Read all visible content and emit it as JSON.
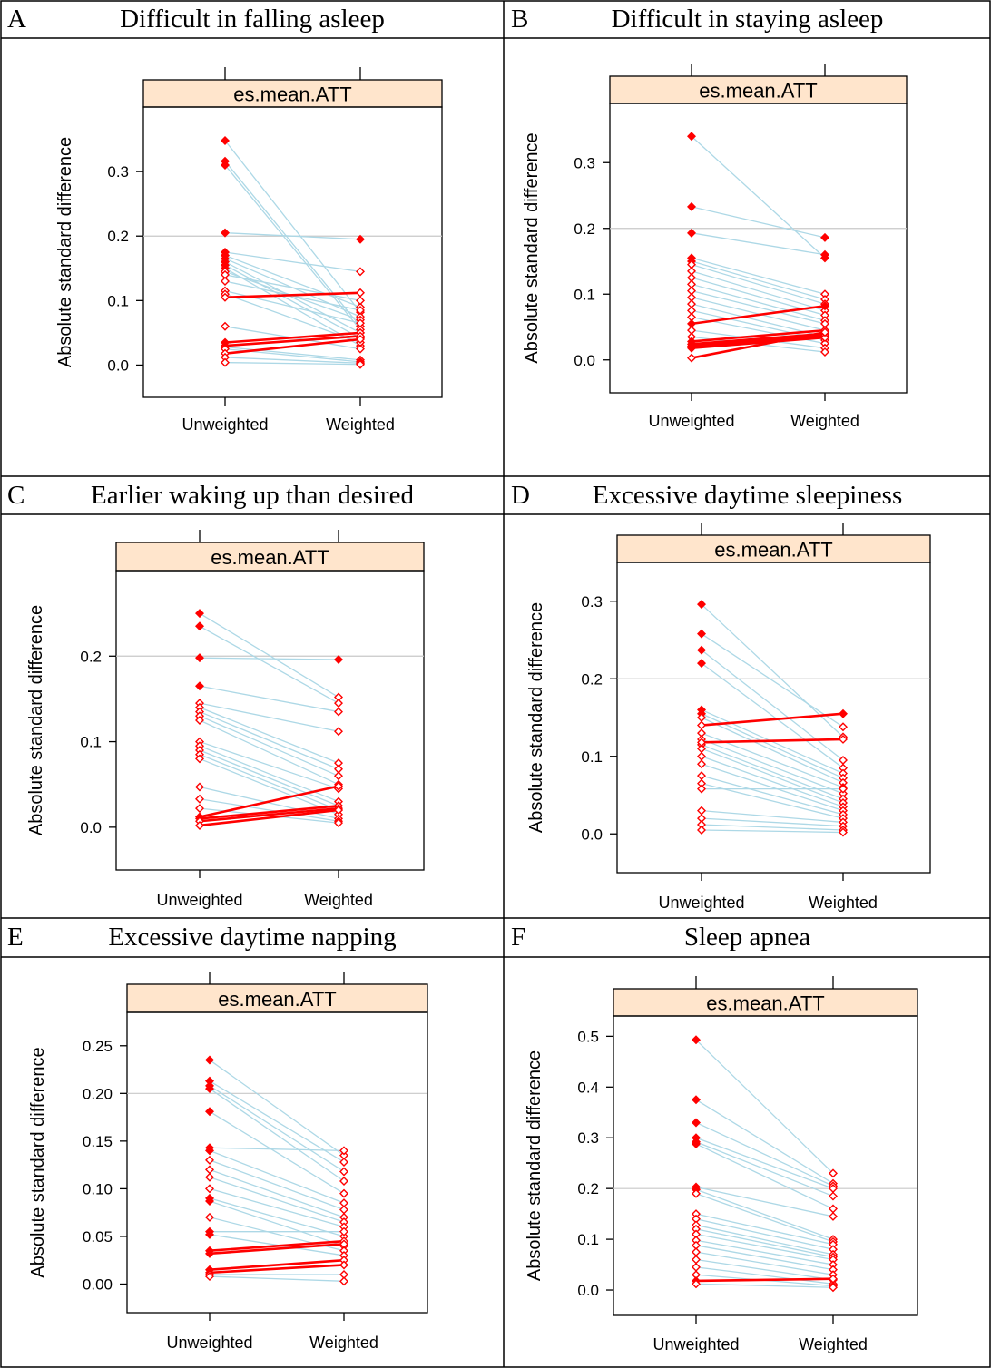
{
  "panels": [
    {
      "letter": "A",
      "title": "Difficult in falling asleep",
      "chart_data": {
        "type": "line",
        "strip_label": "es.mean.ATT",
        "ylabel": "Absolute standard difference",
        "categories": [
          "Unweighted",
          "Weighted"
        ],
        "yticks": [
          "0.0",
          "0.1",
          "0.2",
          "0.3"
        ],
        "ylim": [
          -0.05,
          0.4
        ],
        "reference_line": 0.2,
        "series_colors": {
          "decreased": "#add8e6",
          "increased": "#ff0000",
          "points": "#ff0000"
        },
        "significance_marker": "filled = p < 0.05, open = p >= 0.05",
        "pairs": [
          [
            0.348,
            0.082,
            true,
            false
          ],
          [
            0.316,
            0.06,
            true,
            false
          ],
          [
            0.31,
            0.055,
            true,
            false
          ],
          [
            0.205,
            0.195,
            true,
            true
          ],
          [
            0.175,
            0.145,
            true,
            false
          ],
          [
            0.17,
            0.09,
            true,
            false
          ],
          [
            0.165,
            0.075,
            true,
            false
          ],
          [
            0.16,
            0.05,
            true,
            false
          ],
          [
            0.155,
            0.042,
            true,
            false
          ],
          [
            0.15,
            0.03,
            true,
            false
          ],
          [
            0.145,
            0.07,
            false,
            false
          ],
          [
            0.14,
            0.1,
            false,
            false
          ],
          [
            0.13,
            0.085,
            false,
            false
          ],
          [
            0.115,
            0.065,
            false,
            false
          ],
          [
            0.11,
            0.035,
            false,
            false
          ],
          [
            0.105,
            0.112,
            false,
            false
          ],
          [
            0.06,
            0.025,
            false,
            false
          ],
          [
            0.035,
            0.05,
            true,
            false
          ],
          [
            0.03,
            0.045,
            true,
            false
          ],
          [
            0.028,
            0.008,
            true,
            false
          ],
          [
            0.025,
            0.005,
            false,
            false
          ],
          [
            0.018,
            0.04,
            false,
            false
          ],
          [
            0.012,
            0.003,
            false,
            false
          ],
          [
            0.004,
            0.001,
            false,
            false
          ]
        ]
      }
    },
    {
      "letter": "B",
      "title": "Difficult in staying asleep",
      "chart_data": {
        "type": "line",
        "strip_label": "es.mean.ATT",
        "ylabel": "Absolute standard difference",
        "categories": [
          "Unweighted",
          "Weighted"
        ],
        "yticks": [
          "0.0",
          "0.1",
          "0.2",
          "0.3"
        ],
        "ylim": [
          -0.05,
          0.39
        ],
        "reference_line": 0.2,
        "series_colors": {
          "decreased": "#add8e6",
          "increased": "#ff0000",
          "points": "#ff0000"
        },
        "significance_marker": "filled = p < 0.05, open = p >= 0.05",
        "pairs": [
          [
            0.34,
            0.155,
            true,
            true
          ],
          [
            0.233,
            0.186,
            true,
            true
          ],
          [
            0.193,
            0.16,
            true,
            true
          ],
          [
            0.155,
            0.1,
            true,
            false
          ],
          [
            0.15,
            0.092,
            true,
            false
          ],
          [
            0.145,
            0.085,
            false,
            false
          ],
          [
            0.135,
            0.075,
            false,
            false
          ],
          [
            0.125,
            0.068,
            false,
            false
          ],
          [
            0.115,
            0.06,
            false,
            false
          ],
          [
            0.105,
            0.055,
            false,
            false
          ],
          [
            0.095,
            0.045,
            false,
            false
          ],
          [
            0.085,
            0.035,
            false,
            false
          ],
          [
            0.075,
            0.03,
            false,
            false
          ],
          [
            0.065,
            0.025,
            false,
            false
          ],
          [
            0.055,
            0.082,
            true,
            true
          ],
          [
            0.045,
            0.018,
            false,
            false
          ],
          [
            0.035,
            0.012,
            false,
            false
          ],
          [
            0.028,
            0.045,
            true,
            false
          ],
          [
            0.024,
            0.04,
            true,
            false
          ],
          [
            0.021,
            0.037,
            true,
            false
          ],
          [
            0.018,
            0.034,
            true,
            false
          ],
          [
            0.003,
            0.042,
            false,
            false
          ]
        ]
      }
    },
    {
      "letter": "C",
      "title": "Earlier waking up than desired",
      "chart_data": {
        "type": "line",
        "strip_label": "es.mean.ATT",
        "ylabel": "Absolute standard difference",
        "categories": [
          "Unweighted",
          "Weighted"
        ],
        "yticks": [
          "0.0",
          "0.1",
          "0.2"
        ],
        "ylim": [
          -0.05,
          0.3
        ],
        "reference_line": 0.2,
        "series_colors": {
          "decreased": "#add8e6",
          "increased": "#ff0000",
          "points": "#ff0000"
        },
        "significance_marker": "filled = p < 0.05, open = p >= 0.05",
        "pairs": [
          [
            0.25,
            0.152,
            true,
            false
          ],
          [
            0.235,
            0.145,
            true,
            false
          ],
          [
            0.198,
            0.196,
            true,
            true
          ],
          [
            0.165,
            0.135,
            true,
            false
          ],
          [
            0.145,
            0.112,
            false,
            false
          ],
          [
            0.14,
            0.075,
            false,
            false
          ],
          [
            0.135,
            0.068,
            false,
            false
          ],
          [
            0.13,
            0.06,
            false,
            false
          ],
          [
            0.125,
            0.05,
            false,
            false
          ],
          [
            0.1,
            0.045,
            false,
            false
          ],
          [
            0.095,
            0.03,
            false,
            false
          ],
          [
            0.09,
            0.025,
            false,
            false
          ],
          [
            0.085,
            0.02,
            false,
            false
          ],
          [
            0.08,
            0.015,
            false,
            false
          ],
          [
            0.047,
            0.01,
            false,
            false
          ],
          [
            0.033,
            0.007,
            false,
            false
          ],
          [
            0.022,
            0.005,
            false,
            false
          ],
          [
            0.012,
            0.048,
            true,
            false
          ],
          [
            0.01,
            0.025,
            true,
            false
          ],
          [
            0.007,
            0.022,
            false,
            false
          ],
          [
            0.002,
            0.02,
            false,
            false
          ]
        ]
      }
    },
    {
      "letter": "D",
      "title": "Excessive daytime sleepiness",
      "chart_data": {
        "type": "line",
        "strip_label": "es.mean.ATT",
        "ylabel": "Absolute standard difference",
        "categories": [
          "Unweighted",
          "Weighted"
        ],
        "yticks": [
          "0.0",
          "0.1",
          "0.2",
          "0.3"
        ],
        "ylim": [
          -0.05,
          0.35
        ],
        "reference_line": 0.2,
        "series_colors": {
          "decreased": "#add8e6",
          "increased": "#ff0000",
          "points": "#ff0000"
        },
        "significance_marker": "filled = p < 0.05, open = p >= 0.05",
        "pairs": [
          [
            0.296,
            0.125,
            true,
            false
          ],
          [
            0.258,
            0.138,
            true,
            false
          ],
          [
            0.237,
            0.095,
            true,
            false
          ],
          [
            0.22,
            0.085,
            true,
            false
          ],
          [
            0.16,
            0.078,
            true,
            false
          ],
          [
            0.155,
            0.072,
            true,
            false
          ],
          [
            0.15,
            0.066,
            false,
            false
          ],
          [
            0.14,
            0.155,
            false,
            true
          ],
          [
            0.13,
            0.06,
            false,
            false
          ],
          [
            0.122,
            0.052,
            false,
            false
          ],
          [
            0.115,
            0.045,
            false,
            false
          ],
          [
            0.11,
            0.04,
            false,
            false
          ],
          [
            0.1,
            0.035,
            false,
            false
          ],
          [
            0.09,
            0.03,
            false,
            false
          ],
          [
            0.075,
            0.025,
            false,
            false
          ],
          [
            0.065,
            0.02,
            false,
            false
          ],
          [
            0.03,
            0.015,
            false,
            false
          ],
          [
            0.02,
            0.01,
            false,
            false
          ],
          [
            0.012,
            0.005,
            false,
            false
          ],
          [
            0.005,
            0.002,
            false,
            false
          ],
          [
            0.118,
            0.122,
            false,
            false
          ],
          [
            0.058,
            0.058,
            false,
            false
          ]
        ]
      }
    },
    {
      "letter": "E",
      "title": "Excessive daytime napping",
      "chart_data": {
        "type": "line",
        "strip_label": "es.mean.ATT",
        "ylabel": "Absolute standard difference",
        "categories": [
          "Unweighted",
          "Weighted"
        ],
        "yticks": [
          "0.00",
          "0.05",
          "0.10",
          "0.15",
          "0.20",
          "0.25"
        ],
        "ylim": [
          -0.03,
          0.285
        ],
        "reference_line": 0.2,
        "series_colors": {
          "decreased": "#add8e6",
          "increased": "#ff0000",
          "points": "#ff0000"
        },
        "significance_marker": "filled = p < 0.05, open = p >= 0.05",
        "pairs": [
          [
            0.235,
            0.135,
            true,
            false
          ],
          [
            0.213,
            0.128,
            true,
            false
          ],
          [
            0.208,
            0.118,
            true,
            false
          ],
          [
            0.205,
            0.108,
            true,
            false
          ],
          [
            0.181,
            0.095,
            true,
            false
          ],
          [
            0.143,
            0.14,
            true,
            false
          ],
          [
            0.14,
            0.085,
            true,
            false
          ],
          [
            0.13,
            0.078,
            false,
            false
          ],
          [
            0.12,
            0.07,
            false,
            false
          ],
          [
            0.112,
            0.065,
            false,
            false
          ],
          [
            0.1,
            0.06,
            false,
            false
          ],
          [
            0.09,
            0.05,
            true,
            false
          ],
          [
            0.087,
            0.04,
            true,
            false
          ],
          [
            0.07,
            0.035,
            false,
            false
          ],
          [
            0.055,
            0.055,
            true,
            false
          ],
          [
            0.052,
            0.03,
            true,
            false
          ],
          [
            0.035,
            0.045,
            true,
            false
          ],
          [
            0.032,
            0.042,
            true,
            false
          ],
          [
            0.015,
            0.025,
            true,
            false
          ],
          [
            0.012,
            0.02,
            true,
            false
          ],
          [
            0.01,
            0.01,
            false,
            false
          ],
          [
            0.008,
            0.003,
            false,
            false
          ]
        ]
      }
    },
    {
      "letter": "F",
      "title": "Sleep apnea",
      "chart_data": {
        "type": "line",
        "strip_label": "es.mean.ATT",
        "ylabel": "Absolute standard difference",
        "categories": [
          "Unweighted",
          "Weighted"
        ],
        "yticks": [
          "0.0",
          "0.1",
          "0.2",
          "0.3",
          "0.4",
          "0.5"
        ],
        "ylim": [
          -0.05,
          0.54
        ],
        "reference_line": 0.2,
        "series_colors": {
          "decreased": "#add8e6",
          "increased": "#ff0000",
          "points": "#ff0000"
        },
        "significance_marker": "filled = p < 0.05, open = p >= 0.05",
        "pairs": [
          [
            0.493,
            0.23,
            true,
            false
          ],
          [
            0.375,
            0.21,
            true,
            false
          ],
          [
            0.33,
            0.205,
            true,
            false
          ],
          [
            0.3,
            0.2,
            true,
            false
          ],
          [
            0.292,
            0.185,
            true,
            false
          ],
          [
            0.288,
            0.16,
            true,
            false
          ],
          [
            0.203,
            0.145,
            true,
            false
          ],
          [
            0.198,
            0.1,
            true,
            false
          ],
          [
            0.19,
            0.095,
            false,
            false
          ],
          [
            0.15,
            0.09,
            false,
            false
          ],
          [
            0.14,
            0.08,
            false,
            false
          ],
          [
            0.128,
            0.07,
            false,
            false
          ],
          [
            0.12,
            0.065,
            false,
            false
          ],
          [
            0.11,
            0.06,
            false,
            false
          ],
          [
            0.098,
            0.05,
            false,
            false
          ],
          [
            0.088,
            0.04,
            false,
            false
          ],
          [
            0.075,
            0.03,
            false,
            false
          ],
          [
            0.06,
            0.02,
            false,
            false
          ],
          [
            0.045,
            0.012,
            false,
            false
          ],
          [
            0.03,
            0.008,
            false,
            false
          ],
          [
            0.018,
            0.022,
            true,
            false
          ],
          [
            0.012,
            0.005,
            false,
            false
          ]
        ]
      }
    }
  ]
}
